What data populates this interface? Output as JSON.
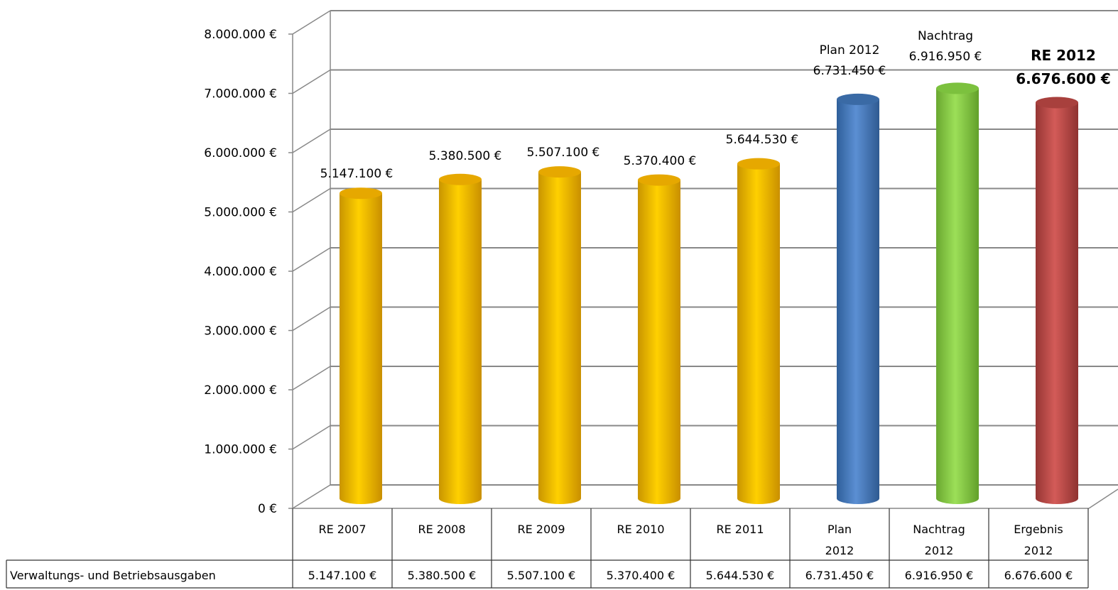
{
  "chart_data": {
    "type": "bar",
    "title": "",
    "xlabel": "",
    "ylabel": "",
    "ylim": [
      0,
      8000000
    ],
    "yticks": [
      "0 €",
      "1.000.000 €",
      "2.000.000 €",
      "3.000.000 €",
      "4.000.000 €",
      "5.000.000 €",
      "6.000.000 €",
      "7.000.000 €",
      "8.000.000 €"
    ],
    "grid": true,
    "categories": [
      [
        "RE 2007"
      ],
      [
        "RE 2008"
      ],
      [
        "RE 2009"
      ],
      [
        "RE 2010"
      ],
      [
        "RE 2011"
      ],
      [
        "Plan",
        "2012"
      ],
      [
        "Nachtrag",
        "2012"
      ],
      [
        "Ergebnis",
        "2012"
      ]
    ],
    "series": [
      {
        "name": "Verwaltungs- und Betriebsausgaben",
        "values": [
          5147100,
          5380500,
          5507100,
          5370400,
          5644530,
          6731450,
          6916950,
          6676600
        ],
        "colors": [
          "#f2b600",
          "#f2b600",
          "#f2b600",
          "#f2b600",
          "#f2b600",
          "#4a7ebb",
          "#8fd14f",
          "#c0504d"
        ]
      }
    ],
    "data_labels": [
      {
        "lines": [
          "5.147.100 €"
        ],
        "bold": false
      },
      {
        "lines": [
          "5.380.500 €"
        ],
        "bold": false
      },
      {
        "lines": [
          "5.507.100 €"
        ],
        "bold": false
      },
      {
        "lines": [
          "5.370.400 €"
        ],
        "bold": false
      },
      {
        "lines": [
          "5.644.530 €"
        ],
        "bold": false
      },
      {
        "lines": [
          "Plan 2012",
          "6.731.450 €"
        ],
        "bold": false
      },
      {
        "lines": [
          "Nachtrag",
          "6.916.950 €"
        ],
        "bold": false
      },
      {
        "lines": [
          "RE 2012",
          "6.676.600 €"
        ],
        "bold": true
      }
    ],
    "table": {
      "row_label": "Verwaltungs- und Betriebsausgaben",
      "cells": [
        "5.147.100 €",
        "5.380.500 €",
        "5.507.100 €",
        "5.370.400 €",
        "5.644.530 €",
        "6.731.450 €",
        "6.916.950 €",
        "6.676.600 €"
      ]
    }
  }
}
